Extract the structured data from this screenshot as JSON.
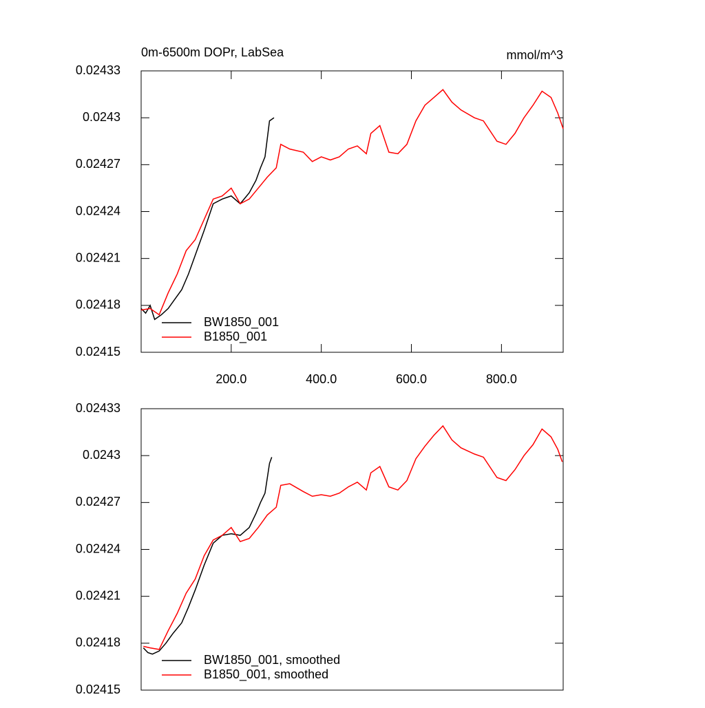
{
  "chart_data": [
    {
      "type": "line",
      "title": "0m-6500m DOPr, LabSea",
      "subtitle": "mmol/m^3",
      "xlim": [
        0,
        937
      ],
      "ylim": [
        0.02415,
        0.02433
      ],
      "xticks": [
        {
          "value": 200,
          "label": "200.0"
        },
        {
          "value": 400,
          "label": "400.0"
        },
        {
          "value": 600,
          "label": "600.0"
        },
        {
          "value": 800,
          "label": "800.0"
        }
      ],
      "yticks": [
        0.02415,
        0.02418,
        0.02421,
        0.02424,
        0.02427,
        0.0243,
        0.02433
      ],
      "series": [
        {
          "name": "BW1850_001",
          "color": "#000000",
          "x": [
            0,
            10,
            20,
            30,
            45,
            60,
            75,
            90,
            105,
            120,
            140,
            160,
            180,
            200,
            220,
            240,
            255,
            265,
            275,
            285,
            295
          ],
          "values": [
            0.024178,
            0.024175,
            0.02418,
            0.024171,
            0.024174,
            0.024178,
            0.024184,
            0.02419,
            0.0242,
            0.024212,
            0.024228,
            0.024245,
            0.024248,
            0.02425,
            0.024245,
            0.024252,
            0.02426,
            0.024268,
            0.024275,
            0.024298,
            0.0243
          ]
        },
        {
          "name": "B1850_001",
          "color": "#ff0000",
          "x": [
            0,
            20,
            40,
            60,
            80,
            100,
            120,
            140,
            160,
            180,
            200,
            220,
            240,
            260,
            280,
            300,
            310,
            330,
            360,
            380,
            400,
            420,
            440,
            460,
            480,
            500,
            510,
            530,
            550,
            570,
            590,
            610,
            630,
            650,
            670,
            690,
            710,
            740,
            760,
            790,
            810,
            830,
            850,
            870,
            890,
            910,
            925,
            937
          ],
          "values": [
            0.024177,
            0.024178,
            0.024174,
            0.024188,
            0.0242,
            0.024215,
            0.024222,
            0.024235,
            0.024248,
            0.02425,
            0.024255,
            0.024245,
            0.024248,
            0.024255,
            0.024262,
            0.024268,
            0.024283,
            0.02428,
            0.024278,
            0.024272,
            0.024275,
            0.024273,
            0.024275,
            0.02428,
            0.024282,
            0.024277,
            0.02429,
            0.024295,
            0.024278,
            0.024277,
            0.024283,
            0.024298,
            0.024308,
            0.024313,
            0.024318,
            0.02431,
            0.024305,
            0.0243,
            0.024298,
            0.024285,
            0.024283,
            0.02429,
            0.0243,
            0.024308,
            0.024317,
            0.024313,
            0.024303,
            0.024293
          ]
        }
      ]
    },
    {
      "type": "line",
      "xlim": [
        0,
        937
      ],
      "ylim": [
        0.02415,
        0.02433
      ],
      "yticks": [
        0.02415,
        0.02418,
        0.02421,
        0.02424,
        0.02427,
        0.0243,
        0.02433
      ],
      "series": [
        {
          "name": "BW1850_001, smoothed",
          "color": "#000000",
          "x": [
            5,
            15,
            25,
            40,
            55,
            70,
            90,
            105,
            120,
            140,
            160,
            180,
            200,
            220,
            240,
            255,
            265,
            275,
            285,
            290
          ],
          "values": [
            0.024177,
            0.024174,
            0.024173,
            0.024175,
            0.02418,
            0.024186,
            0.024193,
            0.024203,
            0.024214,
            0.02423,
            0.024244,
            0.024249,
            0.02425,
            0.024249,
            0.024254,
            0.024263,
            0.02427,
            0.024276,
            0.024295,
            0.024299
          ]
        },
        {
          "name": "B1850_001, smoothed",
          "color": "#ff0000",
          "x": [
            5,
            20,
            40,
            60,
            80,
            100,
            120,
            140,
            160,
            180,
            200,
            220,
            240,
            260,
            280,
            300,
            310,
            330,
            360,
            380,
            400,
            420,
            440,
            460,
            480,
            500,
            510,
            530,
            550,
            570,
            590,
            610,
            630,
            650,
            670,
            690,
            710,
            740,
            760,
            790,
            810,
            830,
            850,
            870,
            890,
            910,
            925,
            935
          ],
          "values": [
            0.024178,
            0.024177,
            0.024176,
            0.024188,
            0.024199,
            0.024212,
            0.024221,
            0.024236,
            0.024246,
            0.024249,
            0.024254,
            0.024245,
            0.024247,
            0.024254,
            0.024262,
            0.024267,
            0.024281,
            0.024282,
            0.024277,
            0.024274,
            0.024275,
            0.024274,
            0.024276,
            0.02428,
            0.024283,
            0.024278,
            0.024289,
            0.024293,
            0.02428,
            0.024278,
            0.024284,
            0.024298,
            0.024306,
            0.024313,
            0.024319,
            0.02431,
            0.024305,
            0.024301,
            0.024299,
            0.024286,
            0.024284,
            0.024291,
            0.0243,
            0.024307,
            0.024317,
            0.024312,
            0.024304,
            0.024296
          ]
        }
      ]
    }
  ]
}
